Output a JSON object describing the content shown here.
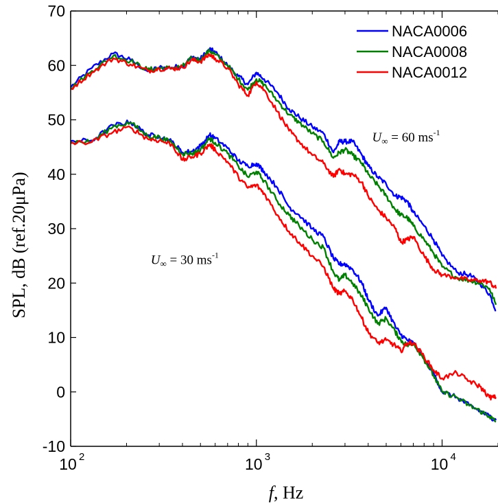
{
  "chart_data": {
    "type": "line",
    "xscale": "log",
    "xlim": [
      100,
      20000
    ],
    "ylim": [
      -10,
      70
    ],
    "xticks": [
      {
        "value": 100,
        "base": "10",
        "exp": "2"
      },
      {
        "value": 1000,
        "base": "10",
        "exp": "3"
      },
      {
        "value": 10000,
        "base": "10",
        "exp": "4"
      }
    ],
    "yticks": [
      -10,
      0,
      10,
      20,
      30,
      40,
      50,
      60,
      70
    ],
    "xlabel": {
      "italic": "f",
      "rest": ", Hz"
    },
    "ylabel": "SPL, dB (ref.20μPa)",
    "grid": false,
    "legend": {
      "position": "top-right",
      "entries": [
        {
          "label": "NACA0006",
          "color": "#0000ff"
        },
        {
          "label": "NACA0008",
          "color": "#008000"
        },
        {
          "label": "NACA0012",
          "color": "#ff0000"
        }
      ]
    },
    "annotations": [
      {
        "id": "u60",
        "var": "U",
        "sub": "∞",
        "text": " = 60 ms",
        "sup": "-1",
        "x": 4200,
        "y": 46
      },
      {
        "id": "u30",
        "var": "U",
        "sub": "∞",
        "text": " = 30 ms",
        "sup": "-1",
        "x": 270,
        "y": 23.5
      }
    ],
    "series": [
      {
        "name": "NACA0006",
        "group": "60 ms-1",
        "color": "#0000ff",
        "x": [
          100,
          130,
          170,
          210,
          260,
          300,
          350,
          400,
          450,
          500,
          560,
          600,
          700,
          800,
          900,
          1000,
          1100,
          1300,
          1500,
          1700,
          2000,
          2300,
          2600,
          2800,
          3000,
          3300,
          3700,
          4000,
          4500,
          5000,
          5600,
          6000,
          6500,
          7000,
          8000,
          9000,
          10000,
          12000,
          14000,
          16000,
          18000,
          19500
        ],
        "y": [
          56,
          59.5,
          62.2,
          61,
          58.9,
          59.6,
          59.6,
          59.9,
          61.5,
          61.2,
          63,
          62.4,
          60,
          58,
          56.5,
          58.7,
          57.5,
          55,
          52,
          50.5,
          48.7,
          47.5,
          44,
          46,
          46,
          46,
          43.5,
          41.5,
          39.5,
          38.2,
          36,
          35.8,
          35,
          33,
          30.5,
          28,
          25,
          22,
          21.5,
          20,
          18,
          15
        ]
      },
      {
        "name": "NACA0008",
        "group": "60 ms-1",
        "color": "#008000",
        "x": [
          100,
          130,
          170,
          210,
          260,
          300,
          350,
          400,
          450,
          500,
          560,
          600,
          700,
          800,
          900,
          1000,
          1100,
          1300,
          1500,
          1700,
          2000,
          2300,
          2600,
          2800,
          3000,
          3300,
          3700,
          4000,
          4500,
          5000,
          5600,
          6000,
          6500,
          7000,
          8000,
          9000,
          10000,
          12000,
          14000,
          16000,
          18000,
          19500
        ],
        "y": [
          55.7,
          59,
          61.8,
          60.8,
          59.2,
          59.5,
          59.5,
          59.8,
          61.3,
          61,
          62.7,
          62,
          60,
          57.5,
          55.5,
          57.5,
          56.5,
          53.5,
          51,
          49.5,
          47.5,
          46,
          43,
          44,
          44.5,
          43.5,
          42,
          40,
          38,
          36,
          33.5,
          32.5,
          32,
          30.5,
          28,
          25.5,
          23,
          21,
          20.5,
          20,
          19,
          16
        ]
      },
      {
        "name": "NACA0012",
        "group": "60 ms-1",
        "color": "#ff0000",
        "x": [
          100,
          130,
          170,
          210,
          260,
          300,
          350,
          400,
          450,
          500,
          560,
          600,
          700,
          800,
          900,
          1000,
          1100,
          1300,
          1500,
          1700,
          2000,
          2300,
          2600,
          2800,
          3000,
          3300,
          3700,
          4000,
          4500,
          5000,
          5600,
          6000,
          6500,
          7000,
          8000,
          9000,
          10000,
          12000,
          14000,
          16000,
          18000,
          19500
        ],
        "y": [
          55.7,
          58.7,
          61.3,
          60.2,
          59,
          59.4,
          59.4,
          59.6,
          61,
          60.7,
          62,
          61.3,
          59.5,
          56.5,
          54.5,
          57,
          55.5,
          51.5,
          48,
          46,
          43.5,
          42,
          39.5,
          41,
          40,
          40,
          38.5,
          36,
          33.5,
          32,
          30,
          27.5,
          28,
          28.5,
          25,
          22.5,
          21.5,
          21,
          20.5,
          20.5,
          20.2,
          19
        ]
      },
      {
        "name": "NACA0006",
        "group": "30 ms-1",
        "color": "#0000ff",
        "x": [
          100,
          130,
          170,
          210,
          260,
          300,
          350,
          400,
          450,
          500,
          560,
          600,
          700,
          800,
          900,
          1000,
          1100,
          1300,
          1500,
          1700,
          2000,
          2300,
          2600,
          2800,
          3000,
          3300,
          3700,
          4000,
          4500,
          5000,
          5600,
          6000,
          6500,
          7000,
          8000,
          9000,
          10000,
          12000,
          14000,
          16000,
          18000,
          19500
        ],
        "y": [
          46.1,
          46.2,
          49,
          49.6,
          47.2,
          47,
          46,
          44,
          44.2,
          45.2,
          47.2,
          46.6,
          44.8,
          42.5,
          41.5,
          42,
          40.5,
          37.5,
          34,
          32.5,
          30,
          28.5,
          24.5,
          23.5,
          23.5,
          22.5,
          20,
          17,
          14,
          15.5,
          12,
          10.5,
          9.5,
          9,
          6,
          3.5,
          0,
          -1,
          -2.5,
          -3.5,
          -4.5,
          -5.2
        ]
      },
      {
        "name": "NACA0008",
        "group": "30 ms-1",
        "color": "#008000",
        "x": [
          100,
          130,
          170,
          210,
          260,
          300,
          350,
          400,
          450,
          500,
          560,
          600,
          700,
          800,
          900,
          1000,
          1100,
          1300,
          1500,
          1700,
          2000,
          2300,
          2600,
          2800,
          3000,
          3300,
          3700,
          4000,
          4500,
          5000,
          5600,
          6000,
          6500,
          7000,
          8000,
          9000,
          10000,
          12000,
          14000,
          16000,
          18000,
          19500
        ],
        "y": [
          45.9,
          46,
          48.8,
          49.5,
          47,
          46.8,
          45.8,
          43.8,
          43.8,
          44.5,
          46.6,
          45.8,
          43.8,
          41.5,
          39.5,
          40.5,
          38.8,
          35,
          32.5,
          30.5,
          28,
          26.5,
          22,
          20.5,
          21.5,
          20,
          17.5,
          15.5,
          12.5,
          13.5,
          11,
          9.5,
          8.5,
          9,
          6,
          3,
          0,
          -1,
          -2.5,
          -3.5,
          -4.5,
          -5.5
        ]
      },
      {
        "name": "NACA0012",
        "group": "30 ms-1",
        "color": "#ff0000",
        "x": [
          100,
          130,
          170,
          210,
          260,
          300,
          350,
          400,
          450,
          500,
          560,
          600,
          700,
          800,
          900,
          1000,
          1100,
          1300,
          1500,
          1700,
          2000,
          2300,
          2600,
          2800,
          3000,
          3300,
          3700,
          4000,
          4500,
          5000,
          5600,
          6000,
          6500,
          7000,
          8000,
          9000,
          10000,
          12000,
          14000,
          16000,
          18000,
          19500
        ],
        "y": [
          45.7,
          45.9,
          47.8,
          48.6,
          46.5,
          46.2,
          45.5,
          42.6,
          43.2,
          43.8,
          45.5,
          44.5,
          42.3,
          39.5,
          37.5,
          38,
          36.5,
          32.5,
          29.5,
          27.5,
          25,
          23,
          19,
          18,
          18.5,
          17,
          13.5,
          11,
          9,
          9.5,
          8.5,
          7.5,
          9,
          9,
          6.5,
          4,
          2.5,
          3.5,
          2,
          1,
          -1,
          -1
        ]
      }
    ]
  }
}
